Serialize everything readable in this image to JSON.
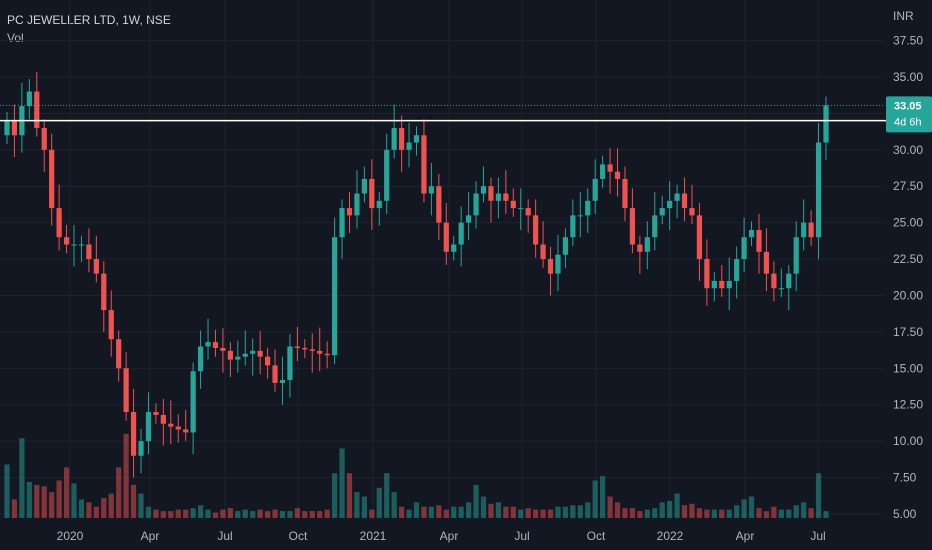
{
  "header": {
    "title": "PC JEWELLER LTD, 1W, NSE",
    "volume_label": "Vol"
  },
  "colors": {
    "background": "#131722",
    "up": "#26a69a",
    "down": "#ef5350",
    "grid": "#1f2330",
    "text": "#b2b5be",
    "resistance": "#ffffff"
  },
  "chart_data": {
    "type": "candlestick",
    "currency": "INR",
    "y_ticks": [
      "37.50",
      "35.00",
      "32.50",
      "30.00",
      "27.50",
      "25.00",
      "22.50",
      "20.00",
      "17.50",
      "15.00",
      "12.50",
      "10.00",
      "7.50",
      "5.00"
    ],
    "y_range": [
      5.0,
      38.5
    ],
    "x_ticks": [
      "2020",
      "Apr",
      "Jul",
      "Oct",
      "2021",
      "Apr",
      "Jul",
      "Oct",
      "2022",
      "Apr",
      "Jul"
    ],
    "last_price": "33.05",
    "countdown": "4d 6h",
    "resistance_level": 32.0,
    "closes": [
      32,
      31,
      33,
      34,
      31.5,
      30,
      26,
      24,
      23.5,
      23.5,
      23.5,
      22.5,
      21.5,
      19,
      17,
      15,
      12,
      9,
      10,
      12,
      11.8,
      11.2,
      11,
      10.8,
      10.6,
      14.8,
      16.5,
      16.8,
      16.4,
      16.2,
      15.6,
      15.8,
      16,
      16.2,
      15.8,
      15.2,
      14,
      14.2,
      16.5,
      16.4,
      16.3,
      16.2,
      16,
      15.9,
      24,
      26,
      25.5,
      27,
      28,
      26,
      26.5,
      30,
      31.5,
      30,
      30.5,
      31,
      27,
      27.5,
      25,
      23,
      23.5,
      25,
      25.5,
      27,
      27.5,
      26.5,
      27,
      26.5,
      26,
      26,
      25.5,
      23.5,
      22.5,
      21.5,
      22.8,
      24,
      25.5,
      25.5,
      26.5,
      28,
      29,
      28.5,
      28,
      26,
      23.5,
      23,
      24,
      25.5,
      26,
      26.5,
      27,
      26,
      25.5,
      22.5,
      20.5,
      21,
      20.5,
      21,
      22.5,
      24,
      24.5,
      23,
      21.5,
      20.5,
      20.5,
      21.5,
      24,
      25,
      24,
      30.5,
      33.05
    ],
    "volumes": [
      8.4,
      6,
      10.2,
      7.2,
      7,
      6.9,
      6.5,
      7.3,
      8.2,
      7.1,
      6,
      5.8,
      5.5,
      6.1,
      6.4,
      8.2,
      10.5,
      7,
      6.4,
      5.5,
      5.3,
      5.2,
      5.2,
      5.3,
      5.3,
      5.4,
      5.6,
      5.3,
      5.1,
      5.3,
      5.4,
      5.2,
      5.3,
      5.2,
      5.3,
      5.2,
      5.3,
      5.2,
      5.2,
      5.4,
      5.2,
      5.2,
      5.2,
      5.3,
      7.8,
      9.5,
      7.8,
      6.5,
      6.2,
      5.3,
      6.8,
      7.8,
      6.5,
      5.5,
      5.3,
      5.8,
      5.5,
      5.5,
      5.6,
      5.3,
      5.5,
      5.5,
      5.8,
      7,
      6.2,
      5.7,
      5.8,
      5.5,
      5.5,
      5.3,
      5.4,
      5.3,
      5.3,
      5.3,
      5.5,
      5.5,
      5.6,
      5.6,
      5.8,
      7.3,
      7.6,
      6.2,
      5.8,
      5.4,
      5.4,
      5.2,
      5.3,
      5.4,
      5.8,
      5.9,
      6.4,
      5.6,
      5.7,
      5.4,
      5.3,
      5.3,
      5.3,
      5.3,
      5.6,
      6,
      6.2,
      5.4,
      5.2,
      5.5,
      5.3,
      5.3,
      5.6,
      5.8,
      5.4,
      7.8,
      5.2
    ]
  }
}
